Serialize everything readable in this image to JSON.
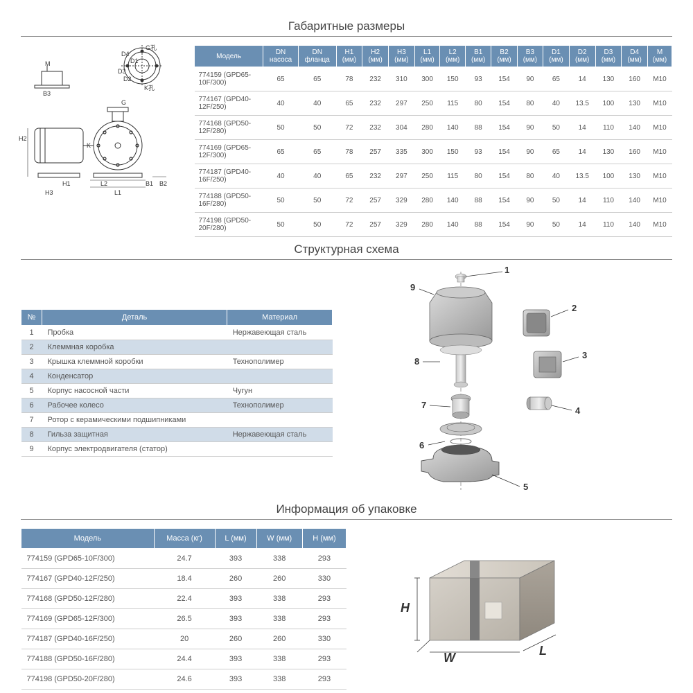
{
  "colors": {
    "header_bg": "#6a8fb3",
    "header_text": "#ffffff",
    "row_alt_bg": "#d0dce8",
    "border": "#cccccc",
    "text": "#555555",
    "title": "#444444"
  },
  "sections": {
    "dimensions": "Габаритные размеры",
    "structure": "Структурная схема",
    "packaging": "Информация об упаковке"
  },
  "dim_table": {
    "headers": [
      "Модель",
      "DN насоса",
      "DN фланца",
      "H1 (мм)",
      "H2 (мм)",
      "H3 (мм)",
      "L1 (мм)",
      "L2 (мм)",
      "B1 (мм)",
      "B2 (мм)",
      "B3 (мм)",
      "D1 (мм)",
      "D2 (мм)",
      "D3 (мм)",
      "D4 (мм)",
      "M (мм)"
    ],
    "rows": [
      [
        "774159 (GPD65-10F/300)",
        "65",
        "65",
        "78",
        "232",
        "310",
        "300",
        "150",
        "93",
        "154",
        "90",
        "65",
        "14",
        "130",
        "160",
        "M10"
      ],
      [
        "774167 (GPD40-12F/250)",
        "40",
        "40",
        "65",
        "232",
        "297",
        "250",
        "115",
        "80",
        "154",
        "80",
        "40",
        "13.5",
        "100",
        "130",
        "M10"
      ],
      [
        "774168 (GPD50-12F/280)",
        "50",
        "50",
        "72",
        "232",
        "304",
        "280",
        "140",
        "88",
        "154",
        "90",
        "50",
        "14",
        "110",
        "140",
        "M10"
      ],
      [
        "774169 (GPD65-12F/300)",
        "65",
        "65",
        "78",
        "257",
        "335",
        "300",
        "150",
        "93",
        "154",
        "90",
        "65",
        "14",
        "130",
        "160",
        "M10"
      ],
      [
        "774187 (GPD40-16F/250)",
        "40",
        "40",
        "65",
        "232",
        "297",
        "250",
        "115",
        "80",
        "154",
        "80",
        "40",
        "13.5",
        "100",
        "130",
        "M10"
      ],
      [
        "774188 (GPD50-16F/280)",
        "50",
        "50",
        "72",
        "257",
        "329",
        "280",
        "140",
        "88",
        "154",
        "90",
        "50",
        "14",
        "110",
        "140",
        "M10"
      ],
      [
        "774198 (GPD50-20F/280)",
        "50",
        "50",
        "72",
        "257",
        "329",
        "280",
        "140",
        "88",
        "154",
        "90",
        "50",
        "14",
        "110",
        "140",
        "M10"
      ]
    ],
    "drawing_labels": [
      "G孔",
      "D4",
      "D1",
      "D3",
      "D2",
      "K孔",
      "M",
      "B3",
      "G",
      "K",
      "H2",
      "H1",
      "H3",
      "L2",
      "L1",
      "B1",
      "B2"
    ]
  },
  "parts_table": {
    "headers": [
      "№",
      "Деталь",
      "Материал"
    ],
    "rows": [
      {
        "n": "1",
        "part": "Пробка",
        "mat": "Нержавеющая сталь",
        "alt": false
      },
      {
        "n": "2",
        "part": "Клеммная коробка",
        "mat": "",
        "alt": true
      },
      {
        "n": "3",
        "part": "Крышка клеммной коробки",
        "mat": "Технополимер",
        "alt": false
      },
      {
        "n": "4",
        "part": "Конденсатор",
        "mat": "",
        "alt": true
      },
      {
        "n": "5",
        "part": "Корпус насосной части",
        "mat": "Чугун",
        "alt": false
      },
      {
        "n": "6",
        "part": "Рабочее колесо",
        "mat": "Технополимер",
        "alt": true
      },
      {
        "n": "7",
        "part": "Ротор с керамическими подшипниками",
        "mat": "",
        "alt": false
      },
      {
        "n": "8",
        "part": "Гильза защитная",
        "mat": "Нержавеющая сталь",
        "alt": true
      },
      {
        "n": "9",
        "part": "Корпус электродвигателя (статор)",
        "mat": "",
        "alt": false
      }
    ],
    "callouts": [
      "1",
      "2",
      "3",
      "4",
      "5",
      "6",
      "7",
      "8",
      "9"
    ]
  },
  "pack_table": {
    "headers": [
      "Модель",
      "Масса (кг)",
      "L (мм)",
      "W (мм)",
      "H (мм)"
    ],
    "rows": [
      [
        "774159 (GPD65-10F/300)",
        "24.7",
        "393",
        "338",
        "293"
      ],
      [
        "774167 (GPD40-12F/250)",
        "18.4",
        "260",
        "260",
        "330"
      ],
      [
        "774168 (GPD50-12F/280)",
        "22.4",
        "393",
        "338",
        "293"
      ],
      [
        "774169 (GPD65-12F/300)",
        "26.5",
        "393",
        "338",
        "293"
      ],
      [
        "774187 (GPD40-16F/250)",
        "20",
        "260",
        "260",
        "330"
      ],
      [
        "774188 (GPD50-16F/280)",
        "24.4",
        "393",
        "338",
        "293"
      ],
      [
        "774198 (GPD50-20F/280)",
        "24.6",
        "393",
        "338",
        "293"
      ]
    ],
    "box_labels": {
      "H": "H",
      "W": "W",
      "L": "L"
    }
  }
}
